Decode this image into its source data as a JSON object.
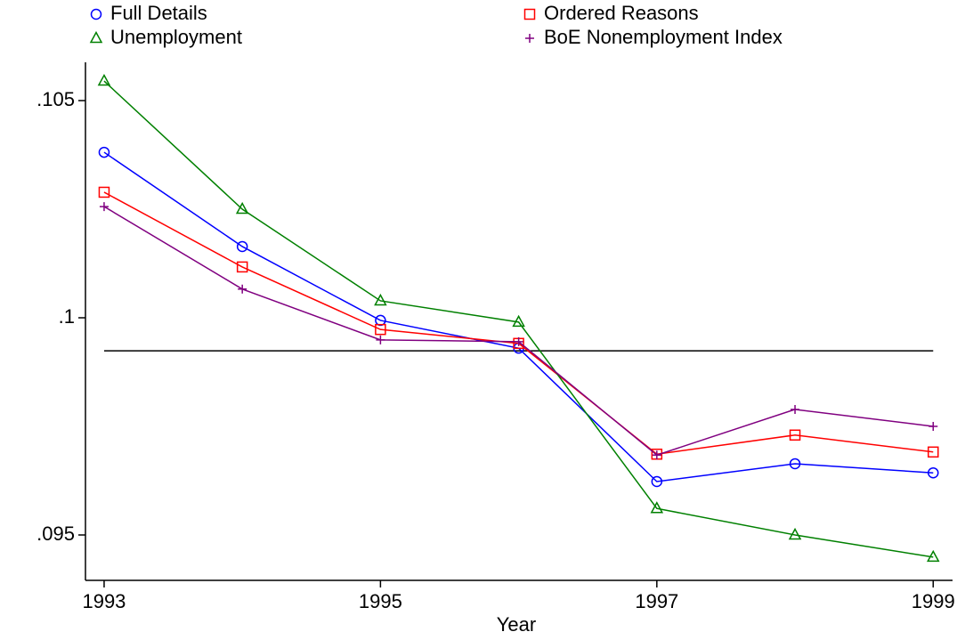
{
  "chart_data": {
    "type": "line",
    "x_label": "Year",
    "x": [
      1993,
      1994,
      1995,
      1996,
      1997,
      1998,
      1999
    ],
    "xlim": [
      1992.865,
      1999.14
    ],
    "xticks": [
      1993,
      1995,
      1997,
      1999
    ],
    "ylim": [
      0.093955,
      0.105881
    ],
    "yticks": [
      {
        "value": 0.105,
        "label": ".105"
      },
      {
        "value": 0.1,
        "label": ".1"
      },
      {
        "value": 0.095,
        "label": ".095"
      }
    ],
    "hline": 0.09924,
    "series": [
      {
        "name": "Full Details",
        "color": "#0000ff",
        "marker": "circle",
        "values": [
          0.10381,
          0.10164,
          0.09994,
          0.0993,
          0.09623,
          0.09664,
          0.09643
        ]
      },
      {
        "name": "Ordered Reasons",
        "color": "#ff0000",
        "marker": "square",
        "values": [
          0.10289,
          0.10117,
          0.09973,
          0.09941,
          0.09686,
          0.0973,
          0.09691
        ]
      },
      {
        "name": "Unemployment",
        "color": "#008000",
        "marker": "triangle",
        "values": [
          0.10545,
          0.1025,
          0.10039,
          0.0999,
          0.09561,
          0.095,
          0.09449
        ]
      },
      {
        "name": "BoE Nonemployment Index",
        "color": "#800080",
        "marker": "plus",
        "values": [
          0.10256,
          0.10066,
          0.09949,
          0.09945,
          0.09684,
          0.09789,
          0.0975
        ]
      }
    ]
  }
}
